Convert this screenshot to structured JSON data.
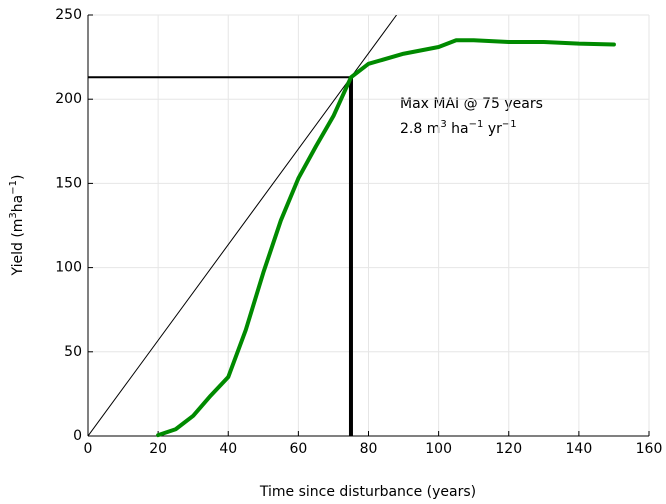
{
  "chart_data": {
    "type": "line",
    "x_label": "Time since disturbance (years)",
    "y_label_parts": [
      "Yield (m",
      "3",
      "ha",
      "−1",
      ")"
    ],
    "x": [
      20,
      25,
      30,
      35,
      40,
      45,
      50,
      55,
      60,
      65,
      70,
      75,
      80,
      90,
      100,
      105,
      110,
      120,
      130,
      140,
      150
    ],
    "series": [
      {
        "color": "#008a00",
        "values": [
          0.5,
          4,
          12,
          24,
          35,
          63,
          97,
          128,
          153,
          172,
          190,
          213,
          221,
          227,
          231,
          235,
          235,
          234,
          234,
          233,
          232.5
        ]
      }
    ],
    "tangent_line": {
      "x": [
        0,
        88
      ],
      "values": [
        0,
        250
      ],
      "color": "#000000"
    },
    "max_mai_point": {
      "x": 75,
      "y": 213
    },
    "annotation_line1": "Max MAI @ 75 years",
    "annotation_line2_parts": [
      "2.8 m",
      "3",
      " ha",
      "−1",
      " yr",
      "−1"
    ],
    "xlim": [
      0,
      160
    ],
    "ylim": [
      0,
      250
    ],
    "xticks": [
      0,
      20,
      40,
      60,
      80,
      100,
      120,
      140,
      160
    ],
    "yticks": [
      0,
      50,
      100,
      150,
      200,
      250
    ],
    "grid": true
  }
}
